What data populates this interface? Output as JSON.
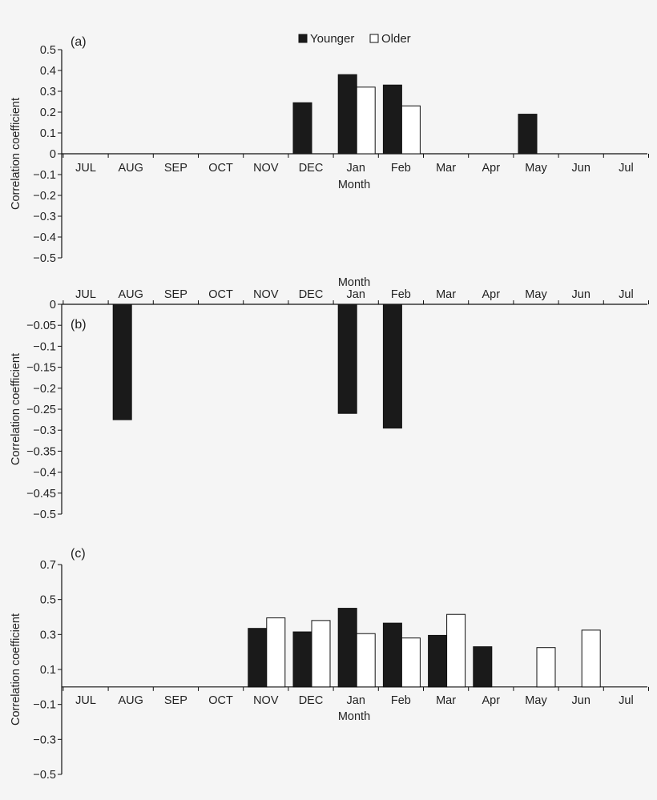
{
  "legend": {
    "younger_label": "Younger",
    "older_label": "Older",
    "younger_color": "#1a1a1a",
    "older_color": "#ffffff"
  },
  "chart_data": [
    {
      "type": "bar",
      "panel_label": "(a)",
      "ylabel": "Correlation coefficient",
      "xlabel": "Month",
      "ylim": [
        -0.5,
        0.5
      ],
      "yticks": [
        0.5,
        0.4,
        0.3,
        0.2,
        0.1,
        0,
        -0.1,
        -0.2,
        -0.3,
        -0.4,
        -0.5
      ],
      "ytick_labels": [
        "0.5",
        "0.4",
        "0.3",
        "0.2",
        "0.1",
        "0",
        "−0.1",
        "−0.2",
        "−0.3",
        "−0.4",
        "−0.5"
      ],
      "categories": [
        "JUL",
        "AUG",
        "SEP",
        "OCT",
        "NOV",
        "DEC",
        "Jan",
        "Feb",
        "Mar",
        "Apr",
        "May",
        "Jun",
        "Jul"
      ],
      "series": [
        {
          "name": "Younger",
          "values": [
            null,
            null,
            null,
            null,
            null,
            0.245,
            0.38,
            0.33,
            null,
            null,
            0.19,
            null,
            null
          ]
        },
        {
          "name": "Older",
          "values": [
            null,
            null,
            null,
            null,
            null,
            null,
            0.32,
            0.23,
            null,
            null,
            null,
            null,
            null
          ]
        }
      ]
    },
    {
      "type": "bar",
      "panel_label": "(b)",
      "ylabel": "Correlation coefficient",
      "xlabel": "Month",
      "ylim": [
        -0.5,
        0
      ],
      "yticks": [
        0,
        -0.05,
        -0.1,
        -0.15,
        -0.2,
        -0.25,
        -0.3,
        -0.35,
        -0.4,
        -0.45,
        -0.5
      ],
      "ytick_labels": [
        "0",
        "−0.05",
        "−0.1",
        "−0.15",
        "−0.2",
        "−0.25",
        "−0.3",
        "−0.35",
        "−0.4",
        "−0.45",
        "−0.5"
      ],
      "categories": [
        "JUL",
        "AUG",
        "SEP",
        "OCT",
        "NOV",
        "DEC",
        "Jan",
        "Feb",
        "Mar",
        "Apr",
        "May",
        "Jun",
        "Jul"
      ],
      "series": [
        {
          "name": "Younger",
          "values": [
            null,
            -0.275,
            null,
            null,
            null,
            null,
            -0.26,
            -0.295,
            null,
            null,
            null,
            null,
            null
          ]
        },
        {
          "name": "Older",
          "values": [
            null,
            null,
            null,
            null,
            null,
            null,
            null,
            null,
            null,
            null,
            null,
            null,
            null
          ]
        }
      ]
    },
    {
      "type": "bar",
      "panel_label": "(c)",
      "ylabel": "Correlation coefficient",
      "xlabel": "Month",
      "ylim": [
        -0.5,
        0.7
      ],
      "yticks": [
        0.7,
        0.5,
        0.3,
        0.1,
        -0.1,
        -0.3,
        -0.5
      ],
      "ytick_labels": [
        "0.7",
        "0.5",
        "0.3",
        "0.1",
        "−0.1",
        "−0.3",
        "−0.5"
      ],
      "categories": [
        "JUL",
        "AUG",
        "SEP",
        "OCT",
        "NOV",
        "DEC",
        "Jan",
        "Feb",
        "Mar",
        "Apr",
        "May",
        "Jun",
        "Jul"
      ],
      "series": [
        {
          "name": "Younger",
          "values": [
            null,
            null,
            null,
            null,
            0.335,
            0.315,
            0.45,
            0.365,
            0.295,
            0.23,
            null,
            null,
            null
          ]
        },
        {
          "name": "Older",
          "values": [
            null,
            null,
            null,
            null,
            0.395,
            0.38,
            0.305,
            0.28,
            0.415,
            null,
            0.225,
            0.325,
            null
          ]
        }
      ]
    }
  ]
}
